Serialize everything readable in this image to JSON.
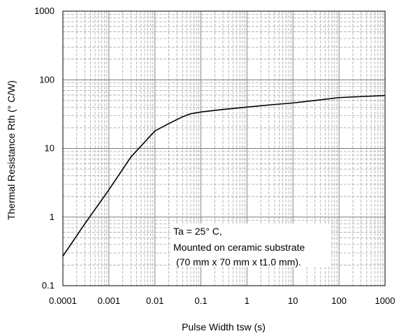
{
  "chart_data": {
    "type": "line",
    "xscale": "log",
    "yscale": "log",
    "xlim": [
      0.0001,
      1000
    ],
    "ylim": [
      0.1,
      1000
    ],
    "xlabel": "Pulse Width  tsw (s)",
    "ylabel": "Thermal Resistance Rth (° C/W)",
    "x_ticks": [
      "0.0001",
      "0.001",
      "0.01",
      "0.1",
      "1",
      "10",
      "100",
      "1000"
    ],
    "y_ticks": [
      "0.1",
      "1",
      "10",
      "100",
      "1000"
    ],
    "grid": true,
    "series": [
      {
        "x": [
          0.0001,
          0.0003,
          0.001,
          0.003,
          0.01,
          0.02,
          0.04,
          0.06,
          0.1,
          0.3,
          1,
          3,
          10,
          30,
          100,
          300,
          1000
        ],
        "y": [
          0.27,
          0.8,
          2.5,
          7.5,
          18,
          23,
          29,
          32,
          34,
          37,
          40,
          43,
          46,
          50,
          55,
          57,
          59
        ]
      }
    ],
    "annotations": [
      "Ta = 25° C,",
      "Mounted on ceramic substrate",
      "(70 mm x 70 mm x t1.0 mm)."
    ]
  }
}
